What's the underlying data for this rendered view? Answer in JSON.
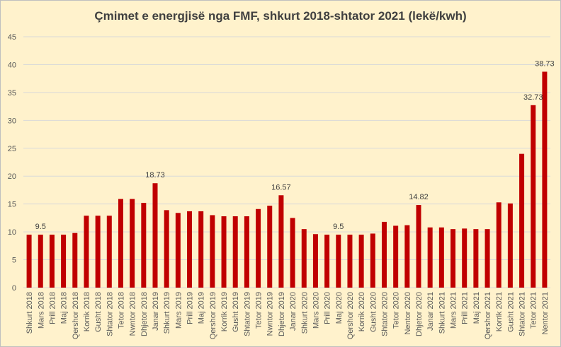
{
  "chart_data": {
    "type": "bar",
    "title": "Çmimet e energjisë nga FMF, shkurt 2018-shtator 2021 (lekë/kwh)",
    "xlabel": "",
    "ylabel": "",
    "ylim": [
      0,
      45
    ],
    "yticks": [
      "0",
      "5",
      "10",
      "15",
      "20",
      "25",
      "30",
      "35",
      "40",
      "45"
    ],
    "grid": true,
    "bar_color": "#C00000",
    "background": "#FFF2CC",
    "categories": [
      "Shkurt 2018",
      "Mars 2018",
      "Prill 2018",
      "Maj 2018",
      "Qershor 2018",
      "Korrik 2018",
      "Gusht 2018",
      "Shtator 2018",
      "Tetor 2018",
      "Nwntor 2018",
      "Dhjetor 2018",
      "Janar 2019",
      "Shkurt 2019",
      "Mars 2019",
      "Prill 2019",
      "Maj 2019",
      "Qershor 2019",
      "Korrik 2019",
      "Gusht 2019",
      "Shtator 2019",
      "Tetor 2019",
      "Nwntor 2019",
      "Dhjetor 2019",
      "Janar 2020",
      "Shkurt 2020",
      "Mars 2020",
      "Prill 2020",
      "Maj 2020",
      "Qershor 2020",
      "Korrik 2020",
      "Gusht 2020",
      "Shtator 2020",
      "Tetor 2020",
      "Nentor 2020",
      "Dhjetor 2020",
      "Janar 2021",
      "Shkurt 2021",
      "Mars 2021",
      "Prill 2021",
      "Maj 2021",
      "Qershor 2021",
      "Korrik 2021",
      "Gusht 2021",
      "Shtator 2021",
      "Tetor 2021",
      "Nentor 2021"
    ],
    "values": [
      9.5,
      9.5,
      9.5,
      9.5,
      9.8,
      12.9,
      12.9,
      12.9,
      15.9,
      15.9,
      15.2,
      18.73,
      13.9,
      13.4,
      13.7,
      13.7,
      13.0,
      12.8,
      12.8,
      12.8,
      14.1,
      14.7,
      16.57,
      12.5,
      10.5,
      9.6,
      9.5,
      9.5,
      9.5,
      9.5,
      9.7,
      11.8,
      11.1,
      11.2,
      14.82,
      10.8,
      10.8,
      10.5,
      10.6,
      10.5,
      10.5,
      15.3,
      15.1,
      24.0,
      32.73,
      38.73
    ],
    "data_labels": [
      {
        "index": 1,
        "text": "9.5"
      },
      {
        "index": 11,
        "text": "18.73"
      },
      {
        "index": 22,
        "text": "16.57"
      },
      {
        "index": 27,
        "text": "9.5"
      },
      {
        "index": 34,
        "text": "14.82"
      },
      {
        "index": 44,
        "text": "32.73"
      },
      {
        "index": 45,
        "text": "38.73"
      }
    ]
  }
}
